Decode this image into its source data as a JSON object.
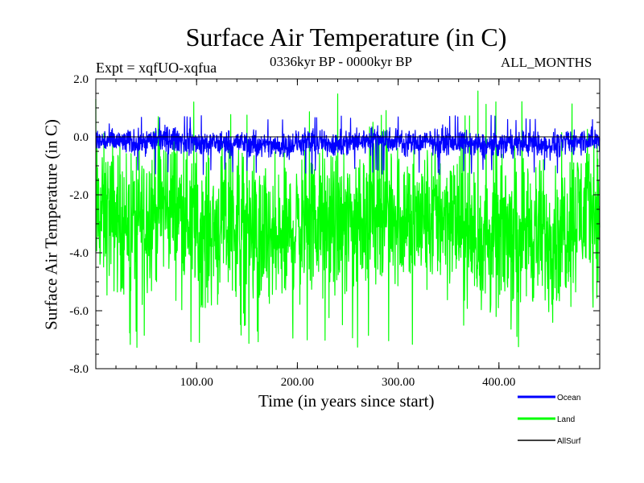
{
  "chart_data": {
    "type": "line",
    "title": "Surface Air Temperature (in C)",
    "subtitle_left": "Expt = xqfUO-xqfua",
    "subtitle_center": "0336kyr BP - 0000kyr BP",
    "subtitle_right": "ALL_MONTHS",
    "xlabel": "Time (in years since start)",
    "ylabel": "Surface Air Temperature (in C)",
    "xlim": [
      0,
      500
    ],
    "ylim": [
      -8.0,
      2.0
    ],
    "x_ticks": [
      100,
      200,
      300,
      400
    ],
    "x_tick_labels": [
      "100.00",
      "200.00",
      "300.00",
      "400.00"
    ],
    "y_ticks": [
      2.0,
      0.0,
      -2.0,
      -4.0,
      -6.0,
      -8.0
    ],
    "y_tick_labels": [
      "2.0",
      "0.0",
      "-2.0",
      "-4.0",
      "-6.0",
      "-8.0"
    ],
    "zero_line": 0.0,
    "series": [
      {
        "name": "Land",
        "color": "#00ff00",
        "mean": -3.0,
        "typical_max": 0.6,
        "typical_min": -6.5,
        "peak_max": 1.6,
        "peak_min": -7.3
      },
      {
        "name": "Ocean",
        "color": "#0000ff",
        "mean": -0.2,
        "typical_max": 0.35,
        "typical_min": -0.85,
        "peak_max": 0.75,
        "peak_min": -1.3
      },
      {
        "name": "AllSurf",
        "color": "#000000",
        "mean": 0.0,
        "typical_max": 0.0,
        "typical_min": 0.0,
        "peak_max": 0.0,
        "peak_min": 0.0
      }
    ],
    "legend": [
      "Ocean",
      "Land",
      "AllSurf"
    ],
    "legend_position": "bottom-right"
  }
}
